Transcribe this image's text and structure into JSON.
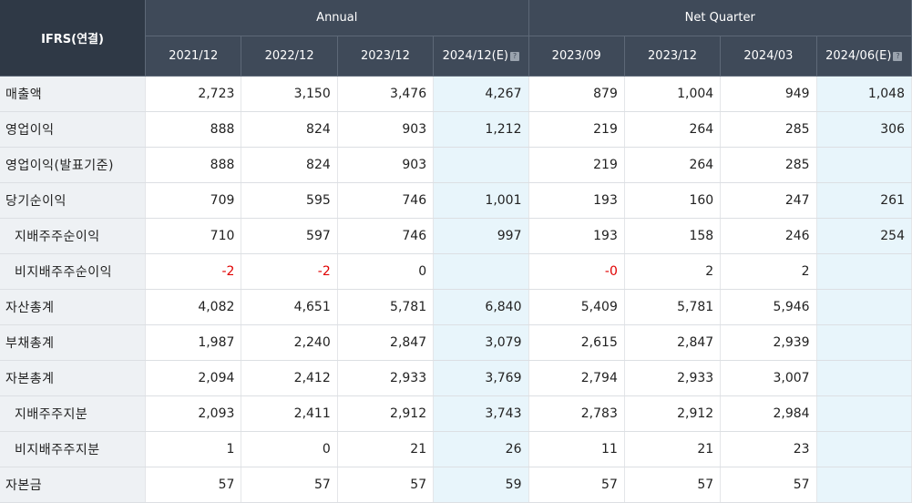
{
  "header": {
    "ifrs_label": "IFRS(연결)",
    "annual_label": "Annual",
    "quarter_label": "Net Quarter",
    "annual_periods": [
      "2021/12",
      "2022/12",
      "2023/12",
      "2024/12(E)"
    ],
    "quarter_periods": [
      "2023/09",
      "2023/12",
      "2024/03",
      "2024/06(E)"
    ],
    "estimate_icon_glyph": "?"
  },
  "rows": [
    {
      "label": "매출액",
      "sub": false,
      "values": [
        "2,723",
        "3,150",
        "3,476",
        "4,267",
        "879",
        "1,004",
        "949",
        "1,048"
      ]
    },
    {
      "label": "영업이익",
      "sub": false,
      "values": [
        "888",
        "824",
        "903",
        "1,212",
        "219",
        "264",
        "285",
        "306"
      ]
    },
    {
      "label": "영업이익(발표기준)",
      "sub": false,
      "values": [
        "888",
        "824",
        "903",
        "",
        "219",
        "264",
        "285",
        ""
      ]
    },
    {
      "label": "당기순이익",
      "sub": false,
      "values": [
        "709",
        "595",
        "746",
        "1,001",
        "193",
        "160",
        "247",
        "261"
      ]
    },
    {
      "label": "지배주주순이익",
      "sub": true,
      "values": [
        "710",
        "597",
        "746",
        "997",
        "193",
        "158",
        "246",
        "254"
      ]
    },
    {
      "label": "비지배주주순이익",
      "sub": true,
      "values": [
        "-2",
        "-2",
        "0",
        "",
        "-0",
        "2",
        "2",
        ""
      ]
    },
    {
      "label": "자산총계",
      "sub": false,
      "values": [
        "4,082",
        "4,651",
        "5,781",
        "6,840",
        "5,409",
        "5,781",
        "5,946",
        ""
      ]
    },
    {
      "label": "부채총계",
      "sub": false,
      "values": [
        "1,987",
        "2,240",
        "2,847",
        "3,079",
        "2,615",
        "2,847",
        "2,939",
        ""
      ]
    },
    {
      "label": "자본총계",
      "sub": false,
      "values": [
        "2,094",
        "2,412",
        "2,933",
        "3,769",
        "2,794",
        "2,933",
        "3,007",
        ""
      ]
    },
    {
      "label": "지배주주지분",
      "sub": true,
      "values": [
        "2,093",
        "2,411",
        "2,912",
        "3,743",
        "2,783",
        "2,912",
        "2,984",
        ""
      ]
    },
    {
      "label": "비지배주주지분",
      "sub": true,
      "values": [
        "1",
        "0",
        "21",
        "26",
        "11",
        "21",
        "23",
        ""
      ]
    },
    {
      "label": "자본금",
      "sub": false,
      "values": [
        "57",
        "57",
        "57",
        "59",
        "57",
        "57",
        "57",
        ""
      ]
    }
  ],
  "colors": {
    "header_bg": "#3f4a59",
    "estimate_bg": "#e8f5fb",
    "label_bg": "#eef1f4",
    "negative": "#e00000"
  }
}
